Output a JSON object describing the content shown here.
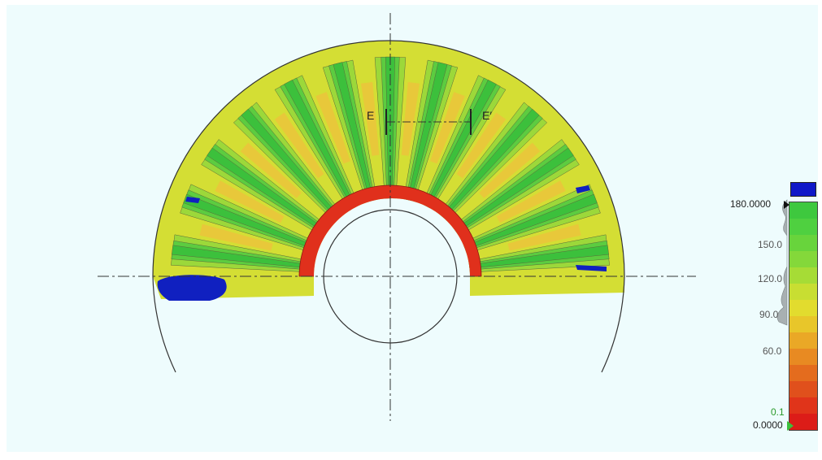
{
  "section": {
    "left_label": "E",
    "right_label": "E′"
  },
  "legend": {
    "max_label": "180.0000",
    "ticks": [
      "150.0",
      "120.0",
      "90.0",
      "60.0"
    ],
    "threshold_label": "0.1",
    "min_label": "0.0000",
    "over_range_color": "#1018c8",
    "bands": [
      "#3ec83e",
      "#4fd040",
      "#68d43c",
      "#84d83a",
      "#a6dc36",
      "#c8de32",
      "#e2dc2e",
      "#e8c62a",
      "#eaa826",
      "#e88a22",
      "#e46c1e",
      "#e0501c",
      "#e0341a",
      "#dc1c18"
    ]
  },
  "contour": {
    "low_color": "#1020c0",
    "levels": [
      "#e8c83a",
      "#d4de34",
      "#9cd83a",
      "#5ccc40",
      "#3cc03c"
    ],
    "high_color": "#e0301c"
  }
}
